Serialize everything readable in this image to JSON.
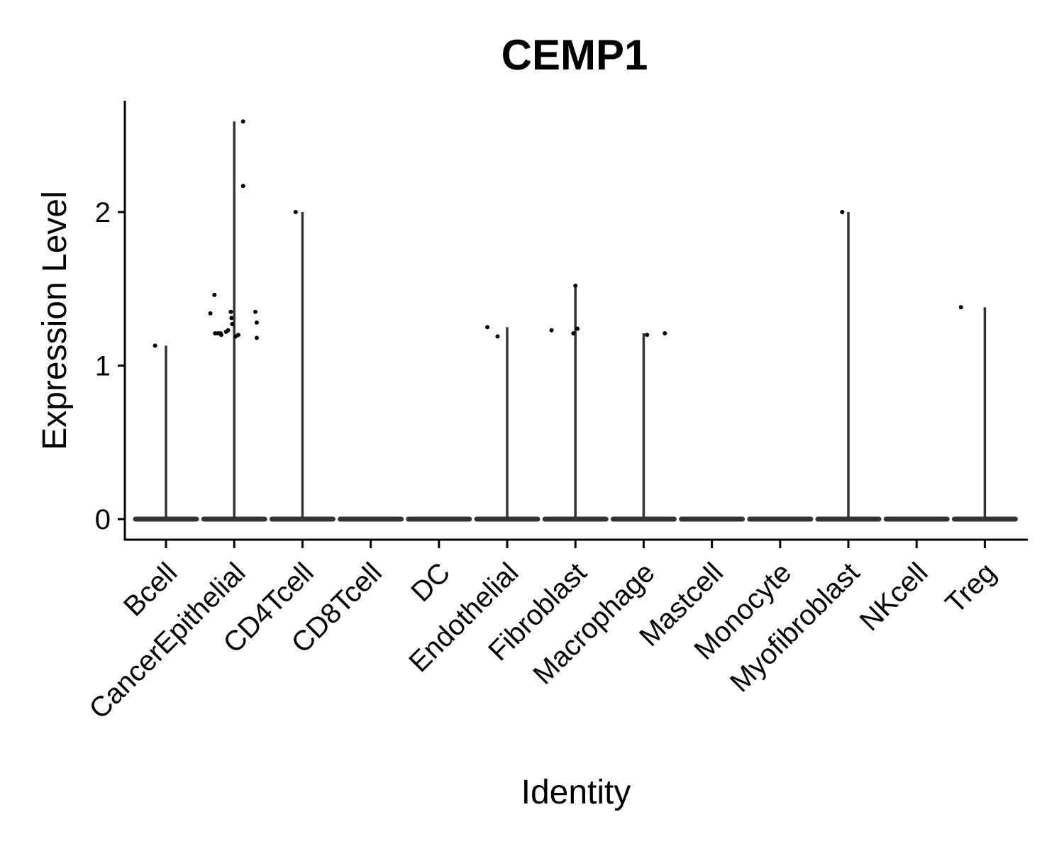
{
  "chart_data": {
    "type": "violin",
    "title": "CEMP1",
    "xlabel": "Identity",
    "ylabel": "Expression Level",
    "ylim": [
      -0.13,
      2.72
    ],
    "yticks": [
      0,
      1,
      2
    ],
    "grid": false,
    "legend": "none",
    "categories": [
      "Bcell",
      "CancerEpithelial",
      "CD4Tcell",
      "CD8Tcell",
      "DC",
      "Endothelial",
      "Fibroblast",
      "Macrophage",
      "Mastcell",
      "Monocyte",
      "Myofibroblast",
      "NKcell",
      "Treg"
    ],
    "violin_max": [
      1.13,
      2.59,
      2.0,
      0,
      0,
      1.25,
      1.52,
      1.21,
      0,
      0,
      2.0,
      0,
      1.38
    ],
    "points": [
      {
        "category": "Bcell",
        "jitter": -0.16,
        "y": 1.13
      },
      {
        "category": "CancerEpithelial",
        "jitter": -0.28,
        "y": 1.21
      },
      {
        "category": "CancerEpithelial",
        "jitter": -0.24,
        "y": 1.21
      },
      {
        "category": "CancerEpithelial",
        "jitter": -0.2,
        "y": 1.21
      },
      {
        "category": "CancerEpithelial",
        "jitter": -0.35,
        "y": 1.34
      },
      {
        "category": "CancerEpithelial",
        "jitter": -0.29,
        "y": 1.46
      },
      {
        "category": "CancerEpithelial",
        "jitter": -0.19,
        "y": 1.2
      },
      {
        "category": "CancerEpithelial",
        "jitter": -0.12,
        "y": 1.22
      },
      {
        "category": "CancerEpithelial",
        "jitter": -0.09,
        "y": 1.23
      },
      {
        "category": "CancerEpithelial",
        "jitter": -0.05,
        "y": 1.35
      },
      {
        "category": "CancerEpithelial",
        "jitter": -0.04,
        "y": 1.31
      },
      {
        "category": "CancerEpithelial",
        "jitter": -0.03,
        "y": 1.27
      },
      {
        "category": "CancerEpithelial",
        "jitter": 0.02,
        "y": 1.19
      },
      {
        "category": "CancerEpithelial",
        "jitter": 0.06,
        "y": 1.2
      },
      {
        "category": "CancerEpithelial",
        "jitter": 0.13,
        "y": 2.59
      },
      {
        "category": "CancerEpithelial",
        "jitter": 0.13,
        "y": 2.17
      },
      {
        "category": "CancerEpithelial",
        "jitter": 0.31,
        "y": 1.35
      },
      {
        "category": "CancerEpithelial",
        "jitter": 0.33,
        "y": 1.28
      },
      {
        "category": "CancerEpithelial",
        "jitter": 0.33,
        "y": 1.18
      },
      {
        "category": "CD4Tcell",
        "jitter": -0.1,
        "y": 2.0
      },
      {
        "category": "Endothelial",
        "jitter": -0.29,
        "y": 1.25
      },
      {
        "category": "Endothelial",
        "jitter": -0.14,
        "y": 1.19
      },
      {
        "category": "Fibroblast",
        "jitter": -0.35,
        "y": 1.23
      },
      {
        "category": "Fibroblast",
        "jitter": -0.03,
        "y": 1.21
      },
      {
        "category": "Fibroblast",
        "jitter": 0.0,
        "y": 1.52
      },
      {
        "category": "Fibroblast",
        "jitter": 0.03,
        "y": 1.24
      },
      {
        "category": "Macrophage",
        "jitter": 0.05,
        "y": 1.2
      },
      {
        "category": "Macrophage",
        "jitter": 0.31,
        "y": 1.21
      },
      {
        "category": "Myofibroblast",
        "jitter": -0.09,
        "y": 2.0
      },
      {
        "category": "Treg",
        "jitter": -0.35,
        "y": 1.38
      }
    ]
  }
}
